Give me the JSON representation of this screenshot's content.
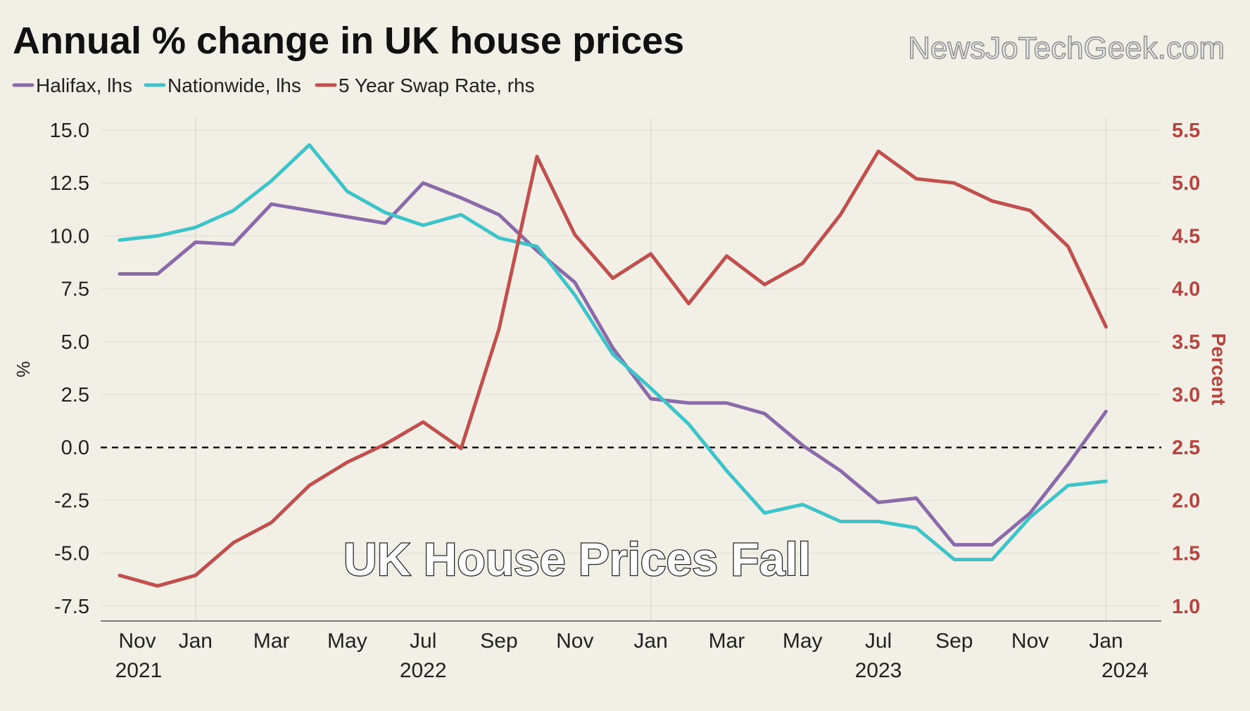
{
  "chart_data": {
    "type": "line",
    "title": "Annual % change in UK house prices",
    "watermark": "NewsJoTechGeek.com",
    "overlay_text": "UK House Prices Fall",
    "ylabel_left": "%",
    "ylabel_right": "Percent",
    "ylim_left": [
      -8,
      15.5
    ],
    "ylim_right": [
      0.95,
      5.6
    ],
    "y_ticks_left": [
      "15.0",
      "12.5",
      "10.0",
      "7.5",
      "5.0",
      "2.5",
      "0.0",
      "-2.5",
      "-5.0",
      "-7.5"
    ],
    "y_tick_values_left": [
      15,
      12.5,
      10,
      7.5,
      5,
      2.5,
      0,
      -2.5,
      -5,
      -7.5
    ],
    "y_ticks_right": [
      "5.5",
      "5.0",
      "4.5",
      "4.0",
      "3.5",
      "3.0",
      "2.5",
      "2.0",
      "1.5",
      "1.0"
    ],
    "y_tick_values_right": [
      5.5,
      5.0,
      4.5,
      4.0,
      3.5,
      3.0,
      2.5,
      2.0,
      1.5,
      1.0
    ],
    "x_tick_labels": [
      "Nov",
      "Jan",
      "Mar",
      "May",
      "Jul",
      "Sep",
      "Nov",
      "Jan",
      "Mar",
      "May",
      "Jul",
      "Sep",
      "Nov",
      "Jan"
    ],
    "x_tick_index": [
      0,
      2,
      4,
      6,
      8,
      10,
      12,
      14,
      16,
      18,
      20,
      22,
      24,
      26
    ],
    "x_year_labels": [
      {
        "label": "2021",
        "index": 0.5
      },
      {
        "label": "2022",
        "index": 8
      },
      {
        "label": "2023",
        "index": 20
      },
      {
        "label": "2024",
        "index": 26.5
      }
    ],
    "gridlines_at_index": [
      2,
      14,
      26
    ],
    "x_range_index": [
      -0.5,
      26.9
    ],
    "series": [
      {
        "name": "Halifax, lhs",
        "axis": "left",
        "color": "#8a6aa8",
        "values": [
          8.2,
          8.2,
          9.7,
          9.6,
          11.5,
          11.2,
          10.9,
          10.6,
          12.5,
          11.8,
          11.0,
          9.3,
          7.8,
          4.7,
          2.3,
          2.1,
          2.1,
          1.6,
          0.1,
          -1.1,
          -2.6,
          -2.4,
          -4.6,
          -4.6,
          -3.1,
          -0.8,
          1.7
        ]
      },
      {
        "name": "Nationwide, lhs",
        "axis": "left",
        "color": "#3ec4c8",
        "values": [
          9.8,
          10.0,
          10.4,
          11.2,
          12.6,
          14.3,
          12.1,
          11.1,
          10.5,
          11.0,
          9.9,
          9.5,
          7.2,
          4.4,
          2.8,
          1.1,
          -1.1,
          -3.1,
          -2.7,
          -3.5,
          -3.5,
          -3.8,
          -5.3,
          -5.3,
          -3.3,
          -1.8,
          -1.6
        ]
      },
      {
        "name": "5 Year Swap Rate, rhs",
        "axis": "right",
        "color": "#c0504d",
        "values": [
          1.29,
          1.19,
          1.29,
          1.6,
          1.79,
          2.14,
          2.36,
          2.53,
          2.74,
          2.49,
          3.62,
          5.25,
          4.51,
          4.1,
          4.33,
          3.86,
          4.31,
          4.04,
          4.24,
          4.7,
          5.3,
          5.04,
          5.0,
          4.83,
          4.74,
          4.4,
          3.64
        ]
      }
    ]
  }
}
